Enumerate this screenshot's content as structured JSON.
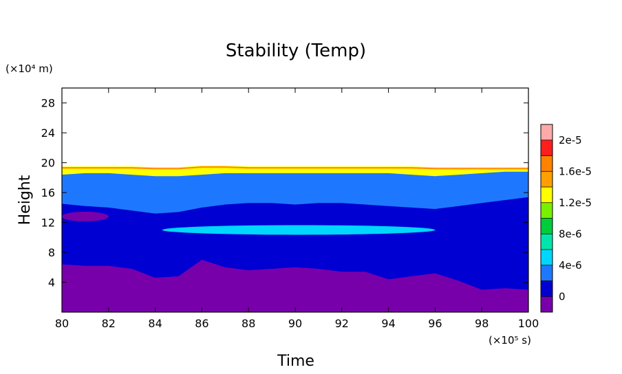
{
  "chart_data": {
    "type": "heatmap",
    "title": "Stability (Temp)",
    "xlabel": "Time",
    "ylabel": "Height",
    "x_unit": "(×10⁵ s)",
    "y_unit": "(×10⁴ m)",
    "xlim": [
      80,
      100
    ],
    "ylim": [
      0,
      30
    ],
    "xticks": [
      "80",
      "82",
      "84",
      "86",
      "88",
      "90",
      "92",
      "94",
      "96",
      "98",
      "100"
    ],
    "yticks": [
      "4",
      "8",
      "12",
      "16",
      "20",
      "24",
      "28"
    ],
    "colorbar": {
      "min": -2e-06,
      "max": 2.2e-05,
      "levels": [
        -2e-06,
        0,
        2e-06,
        4e-06,
        6e-06,
        8e-06,
        1e-05,
        1.2e-05,
        1.4e-05,
        1.6e-05,
        1.8e-05,
        2e-05,
        2.2e-05
      ],
      "colors": [
        "#7800aa",
        "#0000d2",
        "#1e78ff",
        "#00d7ff",
        "#00e6aa",
        "#00cd3c",
        "#78f000",
        "#ffff00",
        "#ffa000",
        "#ff8200",
        "#ff1e1e",
        "#ffaaaa"
      ],
      "labels": [
        "0",
        "4e-6",
        "8e-6",
        "1.2e-5",
        "1.6e-5",
        "2e-5"
      ],
      "label_values": [
        0,
        4e-06,
        8e-06,
        1.2e-05,
        1.6e-05,
        2e-05
      ]
    },
    "bands": [
      {
        "name": "lower stable layer",
        "value_range": [
          -2e-06,
          0
        ],
        "y_top": [
          6.4,
          6.2,
          6.2,
          5.8,
          4.6,
          4.8,
          7.0,
          6.0,
          5.6,
          5.8,
          6.0,
          5.8,
          5.4,
          5.4,
          4.4,
          4.8,
          5.2,
          4.2,
          3.0,
          3.2,
          3.0
        ]
      },
      {
        "name": "troposphere",
        "value_range": [
          0,
          2e-06
        ],
        "y_top": [
          14.5,
          14.2,
          14.0,
          13.6,
          13.2,
          13.4,
          14.0,
          14.4,
          14.6,
          14.6,
          14.4,
          14.6,
          14.6,
          14.4,
          14.2,
          14.0,
          13.8,
          14.2,
          14.6,
          15.0,
          15.4
        ]
      },
      {
        "name": "upper layer",
        "value_range": [
          2e-06,
          4e-06
        ],
        "y_top": [
          18.4,
          18.6,
          18.6,
          18.4,
          18.2,
          18.2,
          18.4,
          18.6,
          18.6,
          18.6,
          18.6,
          18.6,
          18.6,
          18.6,
          18.6,
          18.4,
          18.2,
          18.4,
          18.6,
          18.8,
          18.8
        ]
      },
      {
        "name": "tropopause gradient",
        "value_range": [
          4e-06,
          2e-05
        ],
        "y_top": [
          19.5,
          19.5,
          19.5,
          19.5,
          19.4,
          19.4,
          19.6,
          19.6,
          19.5,
          19.5,
          19.5,
          19.5,
          19.5,
          19.5,
          19.5,
          19.5,
          19.4,
          19.4,
          19.4,
          19.4,
          19.4
        ]
      }
    ],
    "features": [
      {
        "name": "cyan tongue",
        "value": 5e-06,
        "x_range": [
          84.3,
          96.0
        ],
        "y_center": 11.0
      },
      {
        "name": "upper purple patch",
        "value": -1e-06,
        "x_range": [
          80.0,
          82.0
        ],
        "y_center": 12.8
      }
    ]
  }
}
